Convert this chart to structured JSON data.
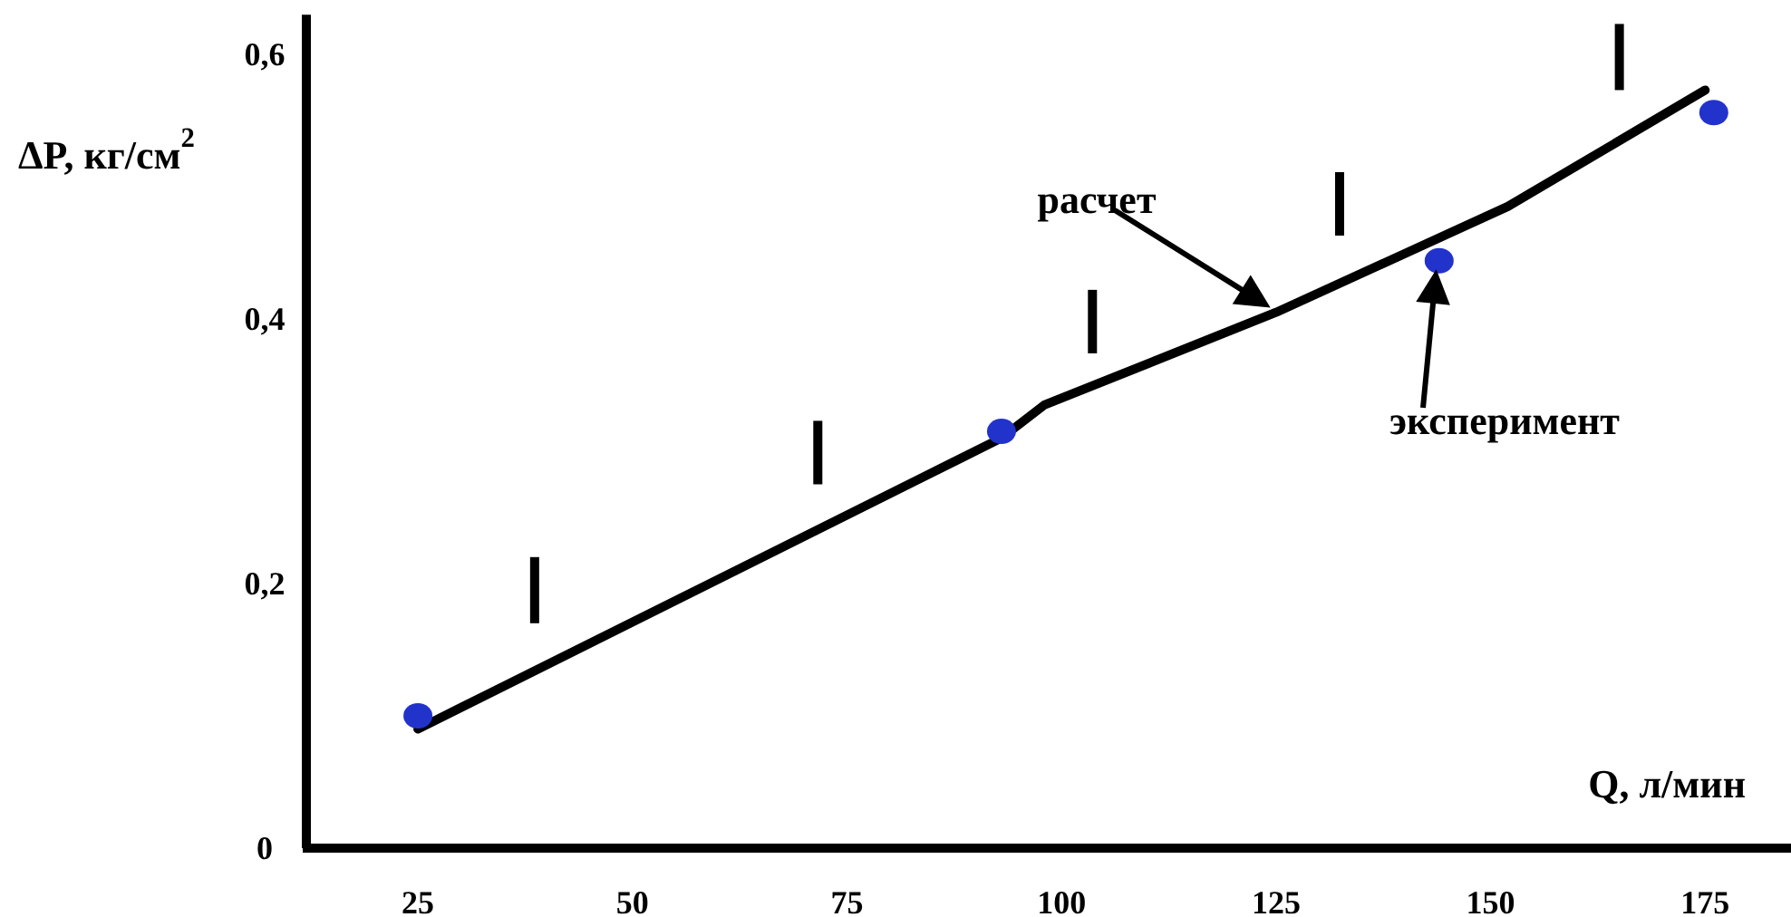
{
  "chart_data": {
    "type": "line",
    "xlabel": "Q, л/мин",
    "ylabel": "ΔP, кг/см$^{2}$",
    "xlim": [
      12,
      185
    ],
    "ylim": [
      0,
      0.63
    ],
    "xticks": [
      25,
      50,
      75,
      100,
      125,
      150,
      175
    ],
    "yticks": [
      0,
      {
        "value": 0.2,
        "label": "0,2"
      },
      {
        "value": 0.4,
        "label": "0,4"
      },
      {
        "value": 0.6,
        "label": "0,6"
      }
    ],
    "series": [
      {
        "color": "#000000",
        "marker": "none",
        "x": [
          25,
          93,
          98,
          125,
          152,
          175
        ],
        "values": [
          0.09,
          0.31,
          0.335,
          0.405,
          0.485,
          0.573
        ]
      },
      {
        "type": "scatter",
        "color": "#2233cc",
        "marker": "circle",
        "x": [
          25,
          93,
          144,
          176
        ],
        "values": [
          0.1,
          0.315,
          0.444,
          0.556
        ]
      },
      {
        "type": "bar",
        "color": "#000000",
        "x": [
          38.6,
          71.6,
          103.6,
          132.4,
          165
        ],
        "base": [
          0.17,
          0.275,
          0.374,
          0.463,
          0.573
        ],
        "values": [
          0.05,
          0.048,
          0.048,
          0.048,
          0.05
        ]
      }
    ],
    "annotations": [
      "расчет",
      "эксперимент"
    ]
  }
}
